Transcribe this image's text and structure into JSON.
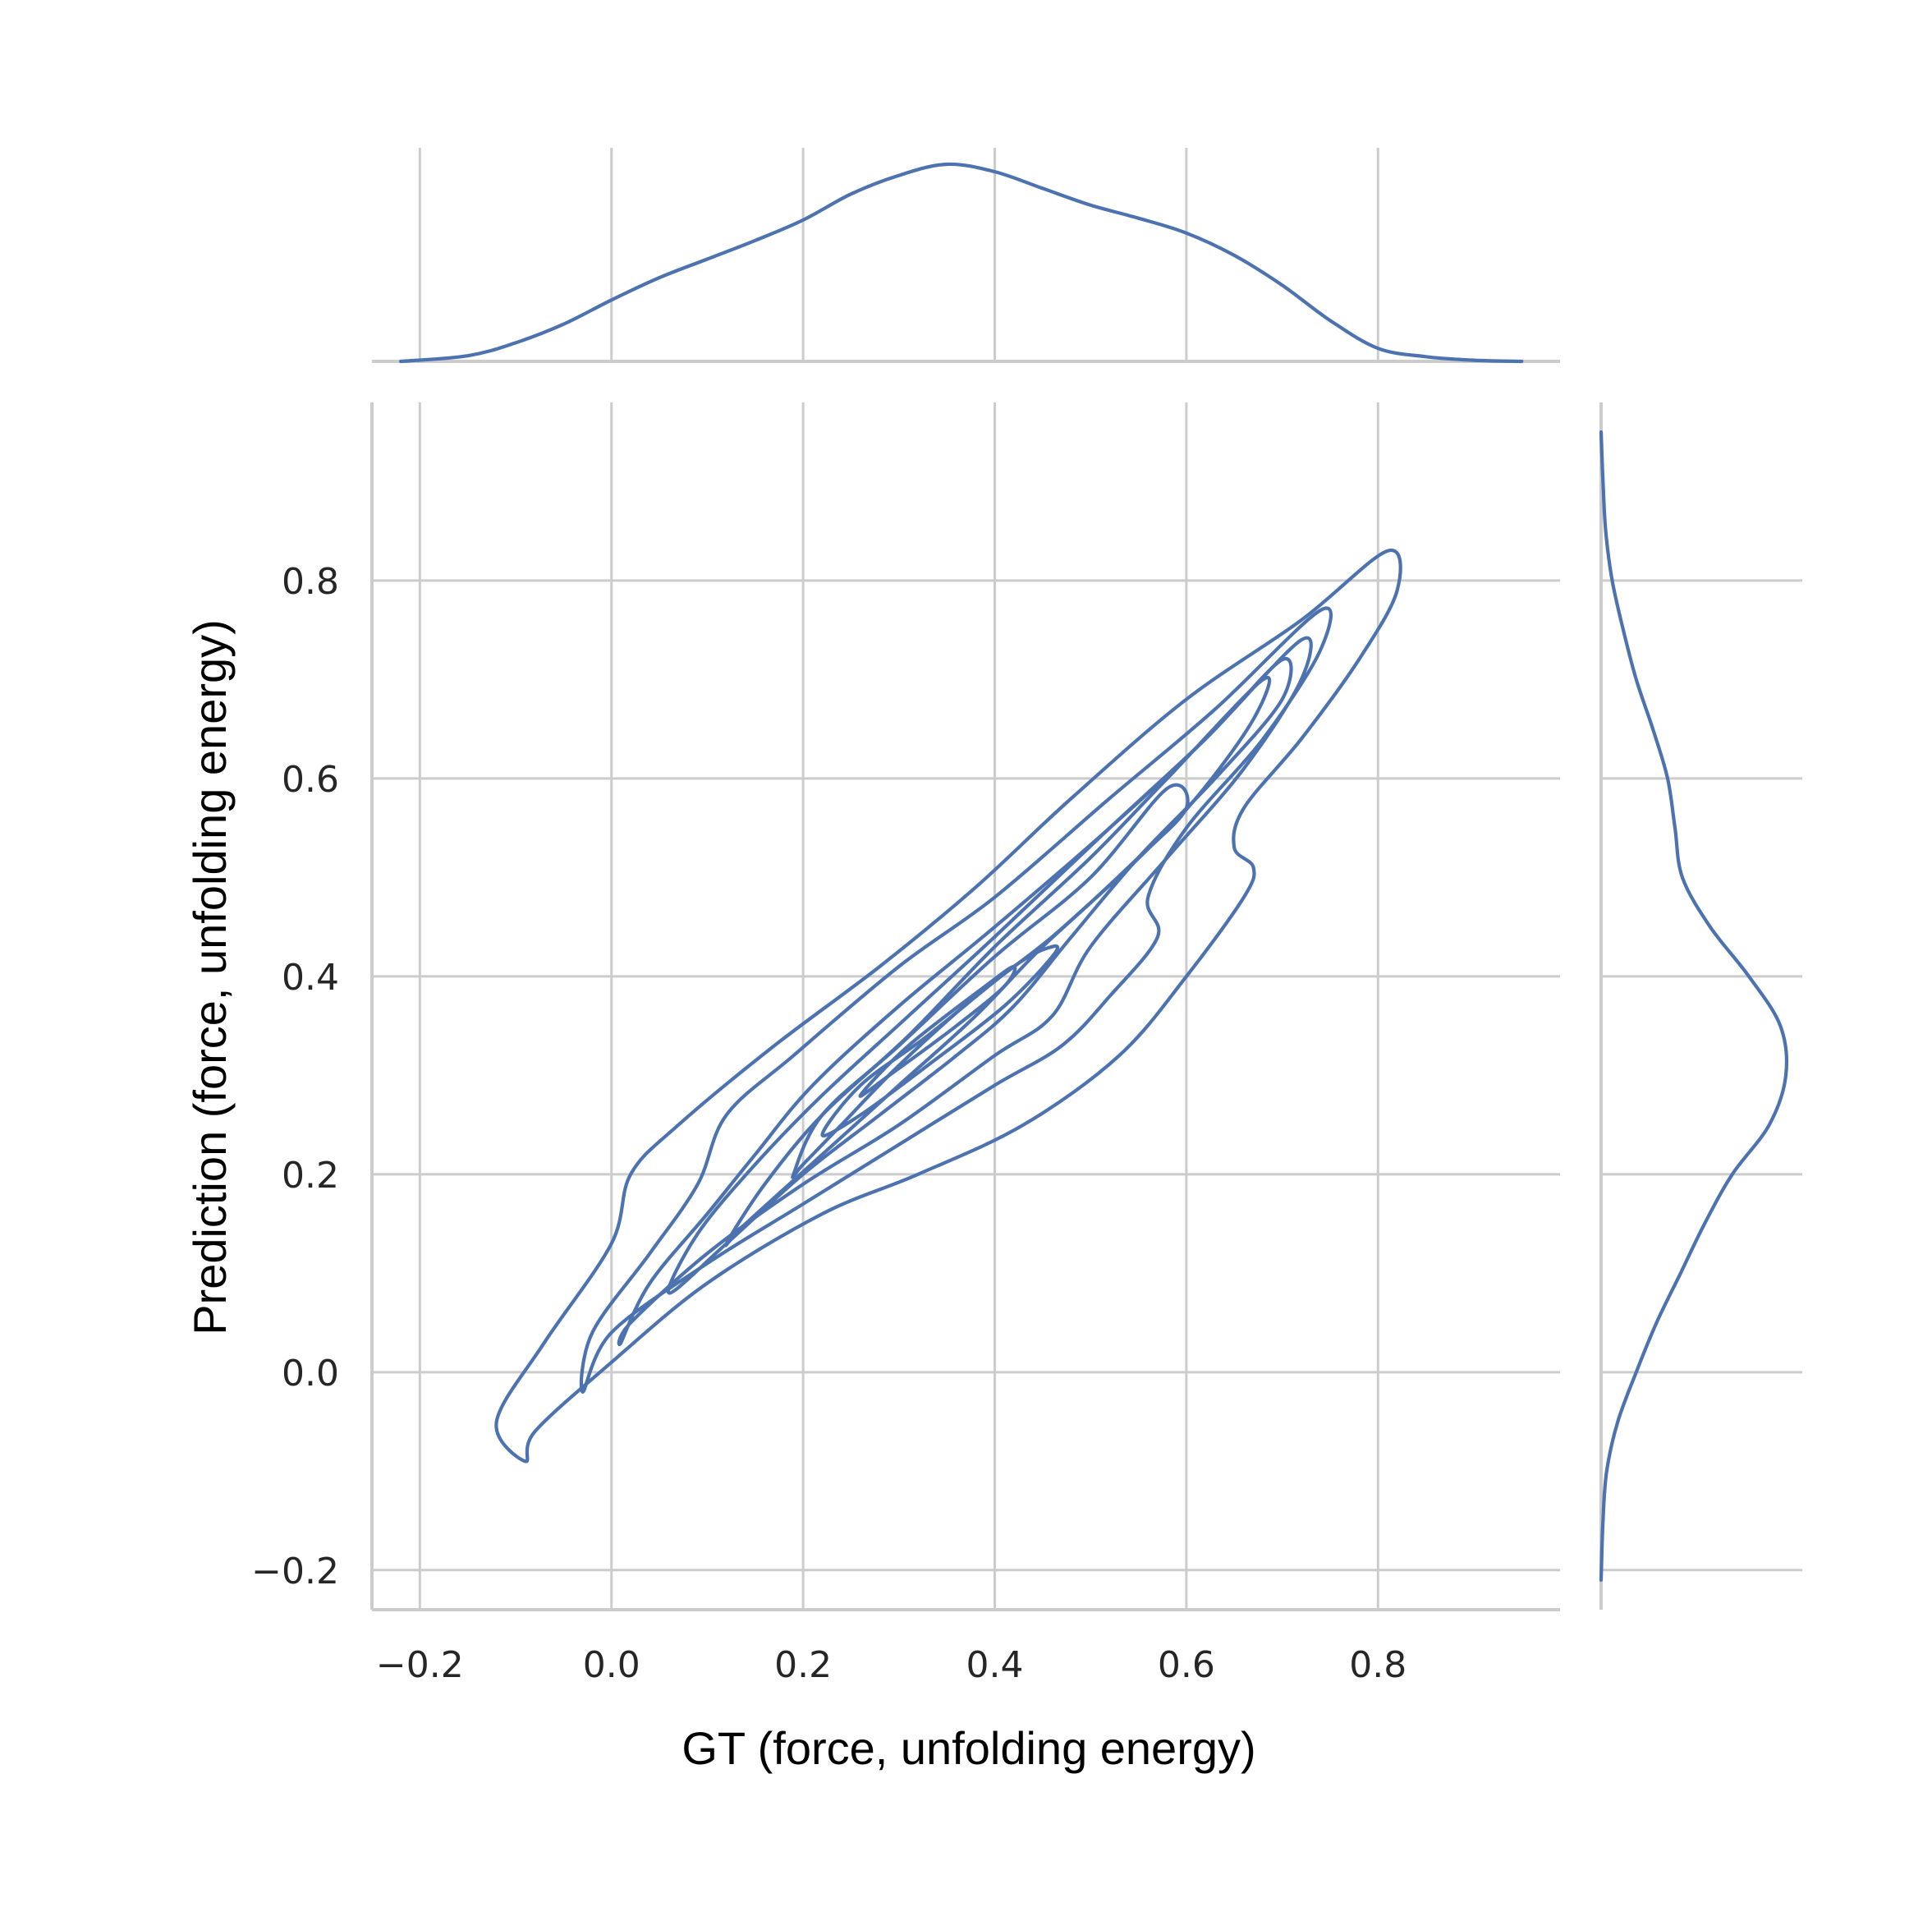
{
  "chart_data": {
    "type": "joint-kde",
    "xlabel": "GT (force, unfolding energy)",
    "ylabel": "Prediction (force, unfolding energy)",
    "xlim": [
      -0.25,
      0.99
    ],
    "ylim": [
      -0.24,
      0.98
    ],
    "xticks": [
      -0.2,
      0.0,
      0.2,
      0.4,
      0.6,
      0.8
    ],
    "yticks": [
      -0.2,
      0.0,
      0.2,
      0.4,
      0.6,
      0.8
    ],
    "xtick_labels": [
      "−0.2",
      "0.0",
      "0.2",
      "0.4",
      "0.6",
      "0.8"
    ],
    "ytick_labels": [
      "−0.2",
      "0.0",
      "0.2",
      "0.4",
      "0.6",
      "0.8"
    ],
    "grid": true,
    "color": "#4c72b0",
    "marginal_x": {
      "x": [
        -0.22,
        -0.15,
        -0.1,
        -0.05,
        0.0,
        0.05,
        0.1,
        0.15,
        0.2,
        0.25,
        0.3,
        0.35,
        0.4,
        0.45,
        0.5,
        0.55,
        0.6,
        0.65,
        0.7,
        0.75,
        0.8,
        0.85,
        0.9,
        0.95
      ],
      "density": [
        0.0,
        0.03,
        0.1,
        0.2,
        0.33,
        0.45,
        0.55,
        0.65,
        0.76,
        0.9,
        1.0,
        1.06,
        1.02,
        0.93,
        0.84,
        0.77,
        0.69,
        0.57,
        0.41,
        0.22,
        0.07,
        0.025,
        0.006,
        0.0
      ]
    },
    "marginal_y": {
      "y": [
        -0.21,
        -0.15,
        -0.1,
        -0.05,
        0.0,
        0.05,
        0.1,
        0.15,
        0.2,
        0.25,
        0.3,
        0.35,
        0.4,
        0.45,
        0.5,
        0.55,
        0.6,
        0.65,
        0.7,
        0.75,
        0.8,
        0.85,
        0.9,
        0.95
      ],
      "density": [
        0.0,
        0.01,
        0.03,
        0.09,
        0.19,
        0.3,
        0.43,
        0.56,
        0.71,
        0.91,
        1.0,
        0.97,
        0.8,
        0.59,
        0.44,
        0.4,
        0.36,
        0.28,
        0.19,
        0.12,
        0.06,
        0.025,
        0.01,
        0.0
      ]
    },
    "contours": [
      {
        "level": 1,
        "points": [
          [
            -0.09,
            -0.09
          ],
          [
            -0.12,
            -0.05
          ],
          [
            -0.07,
            0.03
          ],
          [
            0.0,
            0.13
          ],
          [
            0.02,
            0.2
          ],
          [
            0.07,
            0.25
          ],
          [
            0.17,
            0.33
          ],
          [
            0.28,
            0.41
          ],
          [
            0.38,
            0.49
          ],
          [
            0.48,
            0.58
          ],
          [
            0.6,
            0.68
          ],
          [
            0.72,
            0.76
          ],
          [
            0.81,
            0.83
          ],
          [
            0.82,
            0.79
          ],
          [
            0.78,
            0.72
          ],
          [
            0.72,
            0.64
          ],
          [
            0.66,
            0.57
          ],
          [
            0.65,
            0.53
          ],
          [
            0.67,
            0.51
          ],
          [
            0.66,
            0.48
          ],
          [
            0.6,
            0.4
          ],
          [
            0.53,
            0.32
          ],
          [
            0.43,
            0.25
          ],
          [
            0.32,
            0.2
          ],
          [
            0.22,
            0.16
          ],
          [
            0.1,
            0.09
          ],
          [
            0.0,
            0.01
          ],
          [
            -0.08,
            -0.06
          ],
          [
            -0.09,
            -0.09
          ]
        ]
      },
      {
        "level": 2,
        "points": [
          [
            -0.03,
            -0.02
          ],
          [
            -0.02,
            0.04
          ],
          [
            0.04,
            0.12
          ],
          [
            0.09,
            0.19
          ],
          [
            0.12,
            0.26
          ],
          [
            0.19,
            0.32
          ],
          [
            0.3,
            0.41
          ],
          [
            0.4,
            0.48
          ],
          [
            0.52,
            0.58
          ],
          [
            0.63,
            0.67
          ],
          [
            0.74,
            0.77
          ],
          [
            0.74,
            0.73
          ],
          [
            0.68,
            0.64
          ],
          [
            0.6,
            0.55
          ],
          [
            0.56,
            0.48
          ],
          [
            0.57,
            0.44
          ],
          [
            0.52,
            0.38
          ],
          [
            0.47,
            0.33
          ],
          [
            0.4,
            0.29
          ],
          [
            0.3,
            0.23
          ],
          [
            0.2,
            0.17
          ],
          [
            0.1,
            0.11
          ],
          [
            0.0,
            0.04
          ],
          [
            -0.03,
            -0.02
          ]
        ]
      },
      {
        "level": 3,
        "points": [
          [
            0.01,
            0.03
          ],
          [
            0.04,
            0.09
          ],
          [
            0.1,
            0.16
          ],
          [
            0.15,
            0.22
          ],
          [
            0.21,
            0.29
          ],
          [
            0.3,
            0.37
          ],
          [
            0.4,
            0.45
          ],
          [
            0.52,
            0.55
          ],
          [
            0.62,
            0.64
          ],
          [
            0.72,
            0.74
          ],
          [
            0.72,
            0.7
          ],
          [
            0.66,
            0.61
          ],
          [
            0.58,
            0.52
          ],
          [
            0.5,
            0.43
          ],
          [
            0.46,
            0.36
          ],
          [
            0.4,
            0.32
          ],
          [
            0.3,
            0.25
          ],
          [
            0.2,
            0.19
          ],
          [
            0.1,
            0.12
          ],
          [
            0.02,
            0.05
          ],
          [
            0.01,
            0.03
          ]
        ]
      },
      {
        "level": 4,
        "points": [
          [
            0.06,
            0.08
          ],
          [
            0.09,
            0.14
          ],
          [
            0.15,
            0.21
          ],
          [
            0.22,
            0.28
          ],
          [
            0.31,
            0.36
          ],
          [
            0.4,
            0.44
          ],
          [
            0.52,
            0.55
          ],
          [
            0.62,
            0.64
          ],
          [
            0.7,
            0.72
          ],
          [
            0.7,
            0.68
          ],
          [
            0.63,
            0.6
          ],
          [
            0.55,
            0.52
          ],
          [
            0.48,
            0.44
          ],
          [
            0.42,
            0.37
          ],
          [
            0.36,
            0.32
          ],
          [
            0.28,
            0.26
          ],
          [
            0.2,
            0.2
          ],
          [
            0.12,
            0.13
          ],
          [
            0.06,
            0.08
          ]
        ]
      },
      {
        "level": 5,
        "points": [
          [
            0.12,
            0.13
          ],
          [
            0.16,
            0.19
          ],
          [
            0.22,
            0.26
          ],
          [
            0.31,
            0.34
          ],
          [
            0.4,
            0.43
          ],
          [
            0.5,
            0.52
          ],
          [
            0.58,
            0.6
          ],
          [
            0.68,
            0.7
          ],
          [
            0.67,
            0.66
          ],
          [
            0.61,
            0.58
          ],
          [
            0.54,
            0.51
          ],
          [
            0.45,
            0.43
          ],
          [
            0.38,
            0.36
          ],
          [
            0.3,
            0.29
          ],
          [
            0.22,
            0.22
          ],
          [
            0.14,
            0.15
          ],
          [
            0.12,
            0.13
          ]
        ]
      },
      {
        "level": 6,
        "points": [
          [
            0.19,
            0.2
          ],
          [
            0.22,
            0.26
          ],
          [
            0.3,
            0.33
          ],
          [
            0.4,
            0.42
          ],
          [
            0.5,
            0.5
          ],
          [
            0.58,
            0.59
          ],
          [
            0.6,
            0.57
          ],
          [
            0.55,
            0.52
          ],
          [
            0.46,
            0.44
          ],
          [
            0.38,
            0.38
          ],
          [
            0.3,
            0.31
          ],
          [
            0.24,
            0.25
          ],
          [
            0.2,
            0.21
          ],
          [
            0.19,
            0.2
          ]
        ]
      },
      {
        "level": 7,
        "points": [
          [
            0.22,
            0.24
          ],
          [
            0.26,
            0.29
          ],
          [
            0.33,
            0.34
          ],
          [
            0.42,
            0.41
          ],
          [
            0.46,
            0.43
          ],
          [
            0.46,
            0.42
          ],
          [
            0.41,
            0.37
          ],
          [
            0.33,
            0.31
          ],
          [
            0.26,
            0.26
          ],
          [
            0.22,
            0.24
          ]
        ]
      },
      {
        "level": 8,
        "points": [
          [
            0.26,
            0.28
          ],
          [
            0.31,
            0.33
          ],
          [
            0.39,
            0.39
          ],
          [
            0.42,
            0.41
          ],
          [
            0.41,
            0.39
          ],
          [
            0.36,
            0.35
          ],
          [
            0.29,
            0.3
          ],
          [
            0.26,
            0.28
          ]
        ]
      }
    ]
  }
}
